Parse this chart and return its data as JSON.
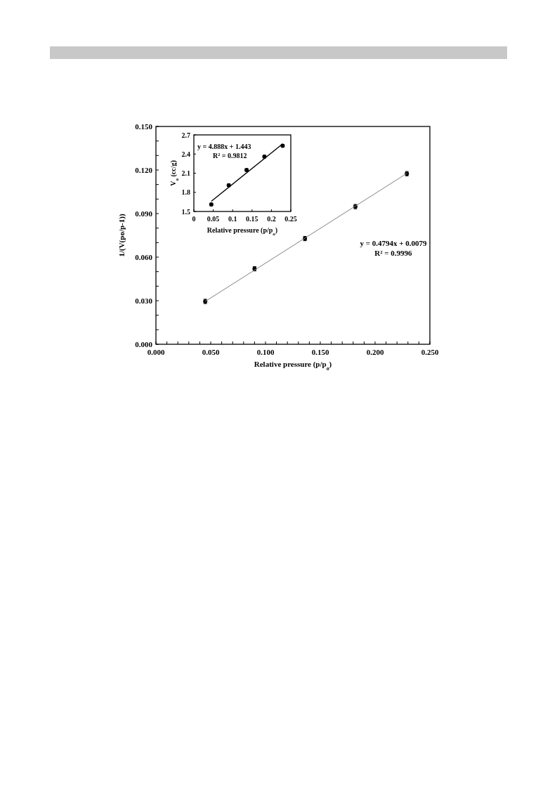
{
  "chart_data": [
    {
      "type": "scatter",
      "xlabel": "Relative pressure (p/p$_{o}$)",
      "ylabel": "1/(V(po/p-1))",
      "xlim": [
        0,
        0.25
      ],
      "ylim": [
        0,
        0.15
      ],
      "xticks": [
        {
          "value": 0,
          "label": "0.000"
        },
        {
          "value": 0.01,
          "label": null
        },
        {
          "value": 0.02,
          "label": null
        },
        {
          "value": 0.03,
          "label": null
        },
        {
          "value": 0.04,
          "label": null
        },
        {
          "value": 0.05,
          "label": "0.050"
        },
        {
          "value": 0.06,
          "label": null
        },
        {
          "value": 0.07,
          "label": null
        },
        {
          "value": 0.08,
          "label": null
        },
        {
          "value": 0.09,
          "label": null
        },
        {
          "value": 0.1,
          "label": "0.100"
        },
        {
          "value": 0.11,
          "label": null
        },
        {
          "value": 0.12,
          "label": null
        },
        {
          "value": 0.13,
          "label": null
        },
        {
          "value": 0.14,
          "label": null
        },
        {
          "value": 0.15,
          "label": "0.150"
        },
        {
          "value": 0.16,
          "label": null
        },
        {
          "value": 0.17,
          "label": null
        },
        {
          "value": 0.18,
          "label": null
        },
        {
          "value": 0.19,
          "label": null
        },
        {
          "value": 0.2,
          "label": "0.200"
        },
        {
          "value": 0.21,
          "label": null
        },
        {
          "value": 0.22,
          "label": null
        },
        {
          "value": 0.23,
          "label": null
        },
        {
          "value": 0.24,
          "label": null
        },
        {
          "value": 0.25,
          "label": "0.250"
        }
      ],
      "yticks": [
        {
          "value": 0,
          "label": "0.000"
        },
        {
          "value": 0.01,
          "label": null
        },
        {
          "value": 0.02,
          "label": null
        },
        {
          "value": 0.03,
          "label": "0.030"
        },
        {
          "value": 0.04,
          "label": null
        },
        {
          "value": 0.05,
          "label": null
        },
        {
          "value": 0.06,
          "label": "0.060"
        },
        {
          "value": 0.07,
          "label": null
        },
        {
          "value": 0.08,
          "label": null
        },
        {
          "value": 0.09,
          "label": "0.090"
        },
        {
          "value": 0.1,
          "label": null
        },
        {
          "value": 0.11,
          "label": null
        },
        {
          "value": 0.12,
          "label": "0.120"
        },
        {
          "value": 0.13,
          "label": null
        },
        {
          "value": 0.14,
          "label": null
        },
        {
          "value": 0.15,
          "label": "0.150"
        }
      ],
      "grid": false,
      "marker": "circle",
      "series": [
        {
          "color": "#000000",
          "x": [
            0.045,
            0.09,
            0.136,
            0.182,
            0.229
          ],
          "values": [
            0.0295,
            0.052,
            0.0728,
            0.0948,
            0.1175
          ],
          "errors": [
            0.0015,
            0.0015,
            0.0015,
            0.0015,
            0.0015
          ]
        },
        {
          "type": "line",
          "marker": "none",
          "color": "#808080",
          "x": [
            0.045,
            0.229
          ],
          "values": [
            0.0295,
            0.1177
          ]
        }
      ],
      "annotations": [
        "y = 0.4794x + 0.0079",
        "R² = 0.9996"
      ]
    },
    {
      "type": "scatter",
      "xlabel": "Relative pressure (p/p$_{o}$)",
      "ylabel": "V$_{a}$ (cc/g)",
      "xlim": [
        0,
        0.25
      ],
      "ylim": [
        1.5,
        2.7
      ],
      "xticks": [
        0,
        0.05,
        0.1,
        0.15,
        0.2,
        0.25
      ],
      "yticks": [
        1.5,
        1.8,
        2.1,
        2.4,
        2.7
      ],
      "grid": false,
      "marker": "circle",
      "series": [
        {
          "color": "#000000",
          "x": [
            0.045,
            0.09,
            0.136,
            0.182,
            0.229
          ],
          "values": [
            1.61,
            1.91,
            2.15,
            2.36,
            2.53
          ],
          "errors": [
            0.02,
            0.02,
            0.02,
            0.02,
            0.02
          ]
        },
        {
          "type": "line",
          "marker": "none",
          "color": "#000000",
          "x": [
            0.045,
            0.229
          ],
          "values": [
            1.66,
            2.56
          ]
        }
      ],
      "annotations": [
        "y = 4.888x + 1.443",
        "R² = 0.9812"
      ]
    }
  ]
}
